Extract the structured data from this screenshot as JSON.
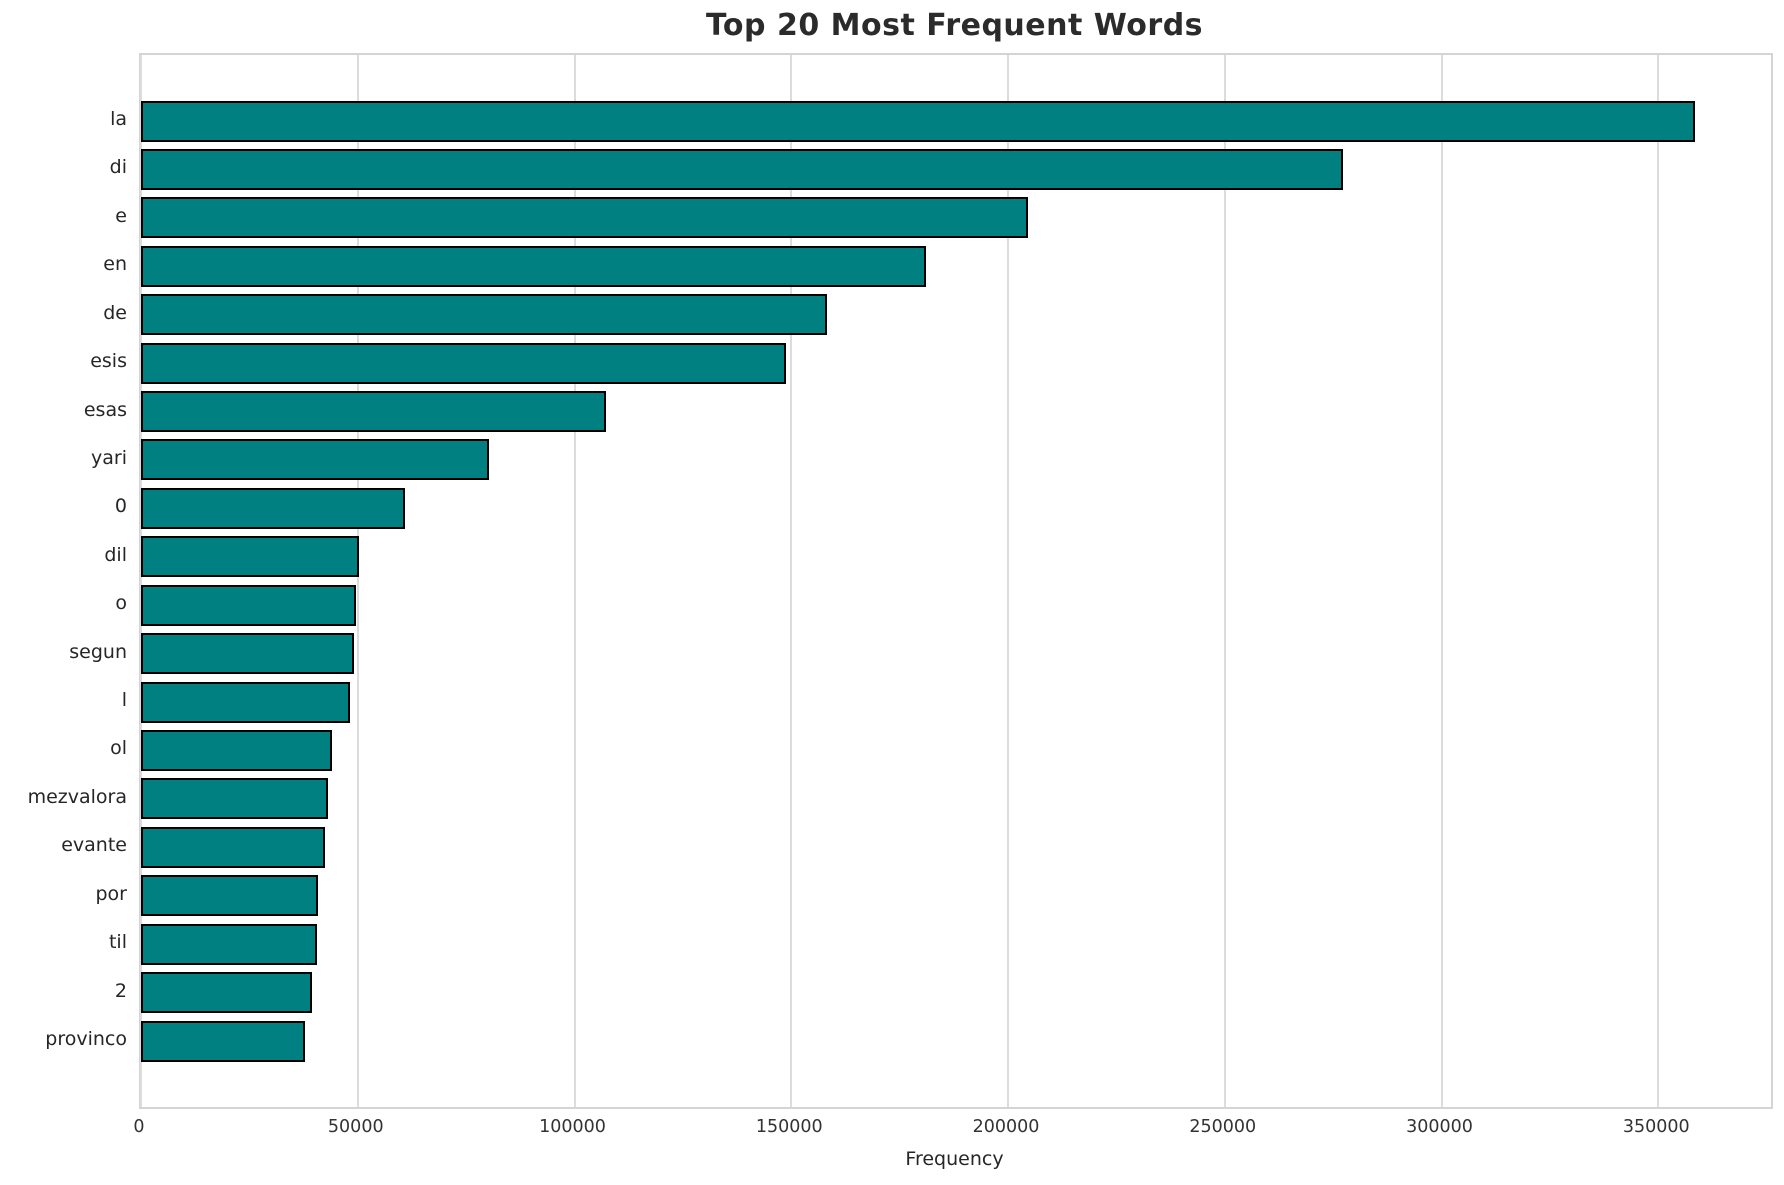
{
  "chart_data": {
    "type": "bar",
    "orientation": "horizontal",
    "title": "Top 20 Most Frequent Words",
    "xlabel": "Frequency",
    "ylabel": "",
    "categories": [
      "la",
      "di",
      "e",
      "en",
      "de",
      "esis",
      "esas",
      "yari",
      "0",
      "dil",
      "o",
      "segun",
      "l",
      "ol",
      "mezvalora",
      "evante",
      "por",
      "til",
      "2",
      "provinco"
    ],
    "values": [
      358500,
      277300,
      204600,
      181100,
      158200,
      148800,
      107200,
      80300,
      61000,
      50300,
      49700,
      49200,
      48300,
      44100,
      43100,
      42400,
      40800,
      40600,
      39400,
      37900
    ],
    "xlim": [
      0,
      376000
    ],
    "xticks": [
      0,
      50000,
      100000,
      150000,
      200000,
      250000,
      300000,
      350000
    ],
    "grid": true,
    "legend": null,
    "bar_color": "#008080",
    "bar_edge_color": "#000000",
    "grid_color": "#dcdcdc",
    "background_color": "#ffffff"
  }
}
